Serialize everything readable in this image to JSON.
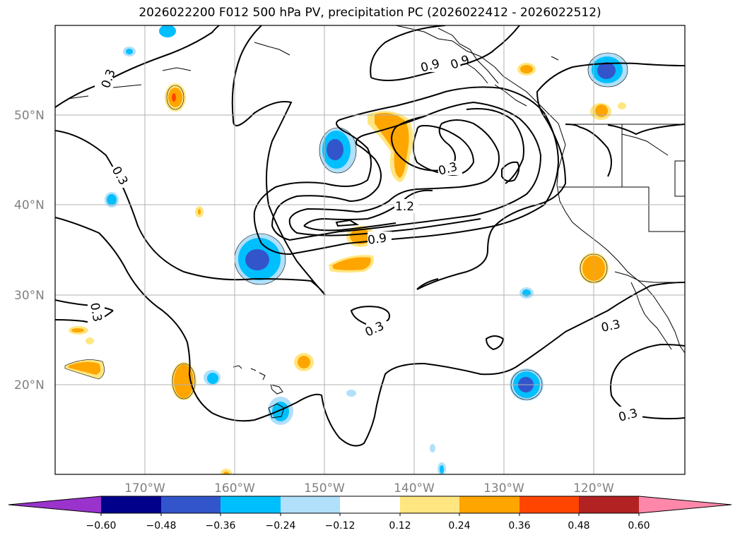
{
  "title": "2026022200 F012 500 hPa PV, precipitation PC (2026022412 - 2026022512)",
  "map": {
    "lon_range": [
      -180,
      -110
    ],
    "lat_range": [
      10,
      60
    ],
    "lat_ticks": [
      {
        "value": 50,
        "label": "50°N"
      },
      {
        "value": 40,
        "label": "40°N"
      },
      {
        "value": 30,
        "label": "30°N"
      },
      {
        "value": 20,
        "label": "20°N"
      }
    ],
    "lon_ticks": [
      {
        "value": -170,
        "label": "170°W"
      },
      {
        "value": -160,
        "label": "160°W"
      },
      {
        "value": -150,
        "label": "150°W"
      },
      {
        "value": -140,
        "label": "140°W"
      },
      {
        "value": -130,
        "label": "130°W"
      },
      {
        "value": -120,
        "label": "120°W"
      }
    ],
    "gridlines": true,
    "pv_contour_labels": [
      "0.3",
      "0.3",
      "0.3",
      "0.9",
      "0.9",
      "1.2",
      "0.3",
      "0.3",
      "0.3",
      "0.9",
      "0.3"
    ]
  },
  "colorbar": {
    "ticks": [
      "−0.60",
      "−0.48",
      "−0.36",
      "−0.24",
      "−0.12",
      "0.12",
      "0.24",
      "0.36",
      "0.48",
      "0.60"
    ],
    "colors": [
      "#9933cc",
      "#00008b",
      "#3355cc",
      "#00bfff",
      "#b0e0fa",
      "#ffffff",
      "#ffe680",
      "#ffa500",
      "#ff4500",
      "#b22222",
      "#ff88aa"
    ],
    "extend": "both"
  }
}
